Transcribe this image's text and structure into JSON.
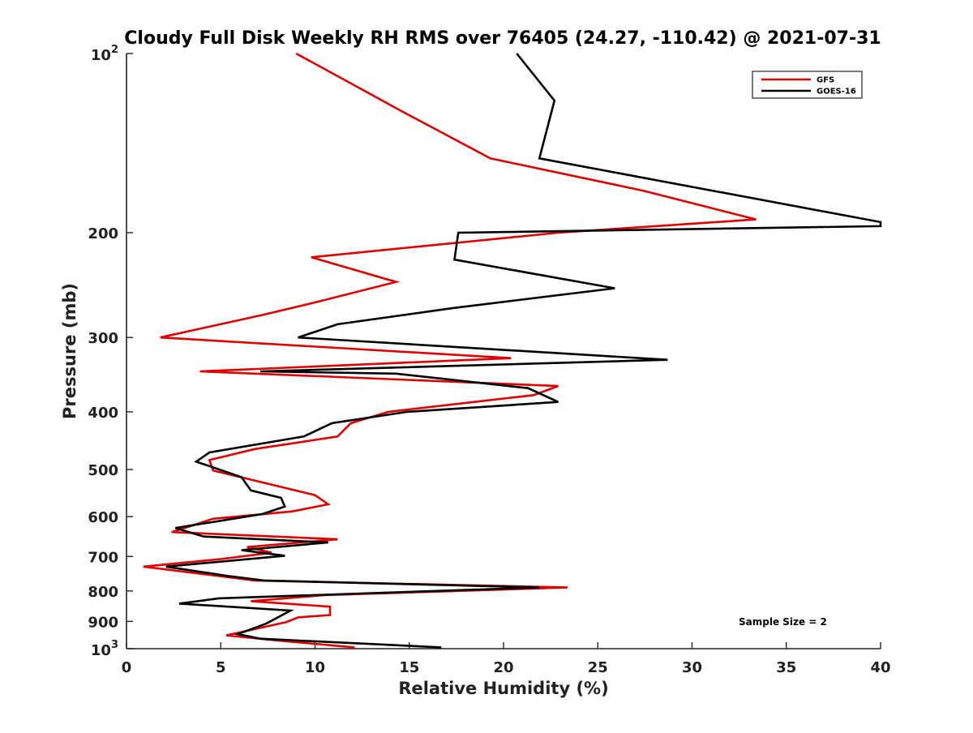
{
  "chart_data": {
    "type": "line",
    "title": "Cloudy Full Disk Weekly RH RMS over 76405 (24.27, -110.42) @ 2021-07-31",
    "xlabel": "Relative Humidity (%)",
    "ylabel": "Pressure (mb)",
    "xlim": [
      0,
      40
    ],
    "ylim": [
      100,
      1000
    ],
    "y_scale": "log",
    "y_reversed": true,
    "grid": false,
    "legend_position": "top-right",
    "x_ticks": [
      "0",
      "5",
      "10",
      "15",
      "20",
      "25",
      "30",
      "35",
      "40"
    ],
    "y_ticks": [
      {
        "value": 100,
        "base": "10",
        "exp": "2"
      },
      {
        "value": 200,
        "label": "200"
      },
      {
        "value": 300,
        "label": "300"
      },
      {
        "value": 400,
        "label": "400"
      },
      {
        "value": 500,
        "label": "500"
      },
      {
        "value": 600,
        "label": "600"
      },
      {
        "value": 700,
        "label": "700"
      },
      {
        "value": 800,
        "label": "800"
      },
      {
        "value": 900,
        "label": "900"
      },
      {
        "value": 1000,
        "base": "10",
        "exp": "3"
      }
    ],
    "annotation": "Sample Size = 2",
    "series": [
      {
        "name": "GFS",
        "color": "#e00000",
        "points": [
          [
            9.0,
            100
          ],
          [
            14.6,
            125
          ],
          [
            19.3,
            150
          ],
          [
            27.4,
            170
          ],
          [
            33.4,
            190
          ],
          [
            22.9,
            200
          ],
          [
            9.8,
            220
          ],
          [
            14.3,
            242
          ],
          [
            10.0,
            262
          ],
          [
            7.2,
            275
          ],
          [
            1.8,
            300
          ],
          [
            20.4,
            325
          ],
          [
            3.9,
            342
          ],
          [
            22.9,
            362
          ],
          [
            21.6,
            375
          ],
          [
            13.9,
            400
          ],
          [
            11.9,
            418
          ],
          [
            11.2,
            440
          ],
          [
            6.8,
            462
          ],
          [
            4.4,
            482
          ],
          [
            4.6,
            502
          ],
          [
            10.0,
            552
          ],
          [
            10.7,
            572
          ],
          [
            8.8,
            588
          ],
          [
            4.6,
            605
          ],
          [
            2.4,
            637
          ],
          [
            11.2,
            655
          ],
          [
            6.4,
            675
          ],
          [
            7.7,
            690
          ],
          [
            5.0,
            707
          ],
          [
            0.9,
            728
          ],
          [
            6.8,
            768
          ],
          [
            23.4,
            789
          ],
          [
            10.5,
            813
          ],
          [
            6.6,
            832
          ],
          [
            10.8,
            850
          ],
          [
            10.8,
            878
          ],
          [
            9.1,
            886
          ],
          [
            8.5,
            902
          ],
          [
            5.3,
            950
          ],
          [
            8.2,
            970
          ],
          [
            12.1,
            995
          ]
        ]
      },
      {
        "name": "GOES-16",
        "color": "#000000",
        "points": [
          [
            20.7,
            100
          ],
          [
            22.7,
            120
          ],
          [
            21.9,
            150
          ],
          [
            40.0,
            192
          ],
          [
            40.0,
            195
          ],
          [
            17.6,
            200
          ],
          [
            17.4,
            222
          ],
          [
            25.9,
            248
          ],
          [
            17.2,
            268
          ],
          [
            11.2,
            285
          ],
          [
            9.1,
            300
          ],
          [
            28.7,
            327
          ],
          [
            7.1,
            342
          ],
          [
            14.3,
            345
          ],
          [
            21.3,
            365
          ],
          [
            22.9,
            385
          ],
          [
            14.9,
            400
          ],
          [
            10.9,
            418
          ],
          [
            9.4,
            440
          ],
          [
            4.4,
            468
          ],
          [
            3.7,
            485
          ],
          [
            6.1,
            515
          ],
          [
            6.6,
            542
          ],
          [
            8.2,
            558
          ],
          [
            8.4,
            577
          ],
          [
            7.2,
            594
          ],
          [
            2.6,
            627
          ],
          [
            4.1,
            648
          ],
          [
            10.7,
            663
          ],
          [
            6.1,
            683
          ],
          [
            8.4,
            698
          ],
          [
            2.1,
            728
          ],
          [
            5.4,
            755
          ],
          [
            7.3,
            768
          ],
          [
            21.9,
            789
          ],
          [
            4.9,
            823
          ],
          [
            2.8,
            840
          ],
          [
            8.7,
            863
          ],
          [
            7.4,
            908
          ],
          [
            5.9,
            945
          ],
          [
            7.1,
            962
          ],
          [
            16.7,
            995
          ]
        ]
      }
    ]
  }
}
